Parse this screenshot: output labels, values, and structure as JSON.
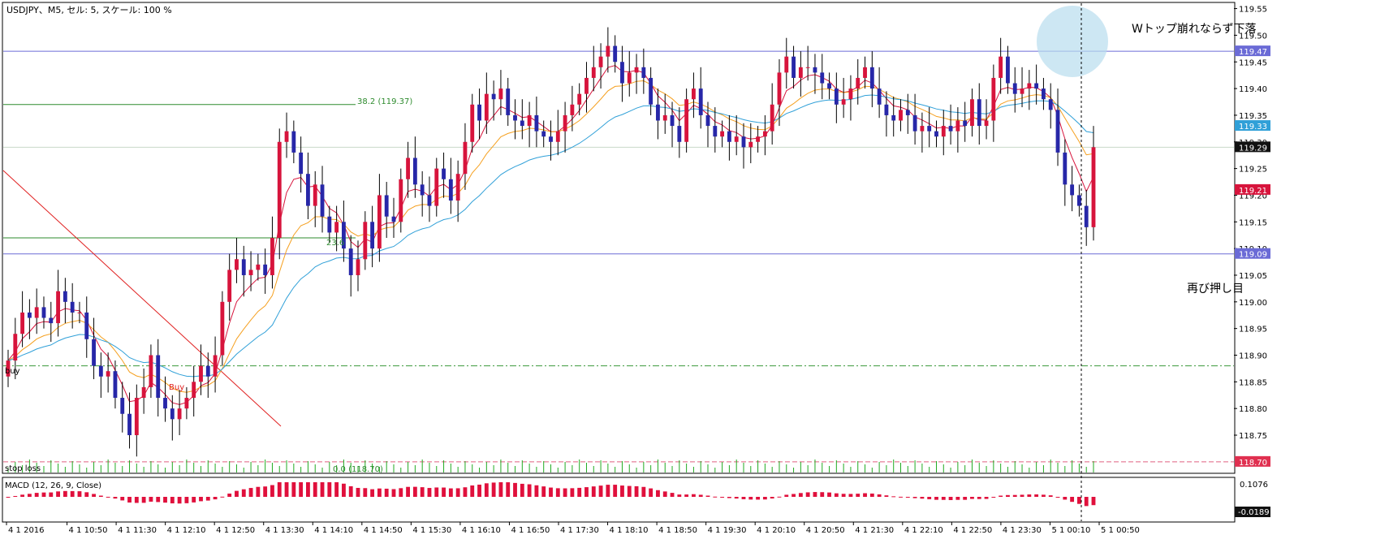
{
  "header": {
    "title": "USDJPY、M5, セル: 5, スケール: 100 %"
  },
  "colors": {
    "bull_candle": "#d7143c",
    "bear_candle": "#2727a8",
    "ma_fast": "#d7143c",
    "ma_mid": "#f5a020",
    "ma_slow": "#30a0d8",
    "level_line": "#6b6bd6",
    "fib_line": "#2e8b2e",
    "trend_line": "#e02020",
    "stop_line": "#e06080",
    "buy_line": "#3a9a3a",
    "volume": "#22aa22",
    "macd_bar": "#e0103c",
    "macd_signal": "#c0a0a0"
  },
  "annotations": {
    "top_note": "Wトップ崩れならず下落",
    "bottom_note": "再び押し目",
    "fib_382": "38.2 (119.37)",
    "fib_236": "23.6",
    "fib_0": "0.0 (118.70)",
    "buy_label": "buy",
    "buy_marker": "Buy",
    "stop_label": "stop loss"
  },
  "macd": {
    "label": "MACD (12, 26, 9, Close)",
    "scale_top": "0.1076",
    "current": "-0.0189"
  },
  "chart_data": {
    "type": "candlestick",
    "symbol": "USDJPY",
    "timeframe": "M5",
    "ylim": [
      118.68,
      119.56
    ],
    "y_ticks": [
      "119.55",
      "119.50",
      "119.45",
      "119.40",
      "119.35",
      "119.30",
      "119.25",
      "119.20",
      "119.15",
      "119.10",
      "119.05",
      "119.00",
      "118.95",
      "118.90",
      "118.85",
      "118.80",
      "118.75"
    ],
    "x_ticks": [
      "4 1 2016",
      "4 1 10:50",
      "4 1 11:30",
      "4 1 12:10",
      "4 1 12:50",
      "4 1 13:30",
      "4 1 14:10",
      "4 1 14:50",
      "4 1 15:30",
      "4 1 16:10",
      "4 1 16:50",
      "4 1 17:30",
      "4 1 18:10",
      "4 1 18:50",
      "4 1 19:30",
      "4 1 20:10",
      "4 1 20:50",
      "4 1 21:30",
      "4 1 22:10",
      "4 1 22:50",
      "4 1 23:30",
      "5 1 00:10",
      "5 1 00:50"
    ],
    "price_labels": [
      {
        "value": "119.47",
        "price": 119.47,
        "bg": "#6b6bd6",
        "fg": "#ffffff"
      },
      {
        "value": "119.33",
        "price": 119.33,
        "bg": "#30a0d8",
        "fg": "#ffffff"
      },
      {
        "value": "119.29",
        "price": 119.29,
        "bg": "#111111",
        "fg": "#ffffff"
      },
      {
        "value": "119.21",
        "price": 119.21,
        "bg": "#d7143c",
        "fg": "#ffffff"
      },
      {
        "value": "119.09",
        "price": 119.09,
        "bg": "#6b6bd6",
        "fg": "#ffffff"
      },
      {
        "value": "118.70",
        "price": 118.7,
        "bg": "#e03050",
        "fg": "#ffffff"
      }
    ],
    "horizontal_levels": [
      {
        "name": "resistance",
        "price": 119.47
      },
      {
        "name": "fib-38.2",
        "price": 119.37
      },
      {
        "name": "current",
        "price": 119.29
      },
      {
        "name": "fib-23.6",
        "price": 119.12
      },
      {
        "name": "support",
        "price": 119.09
      },
      {
        "name": "buy-entry",
        "price": 118.88
      },
      {
        "name": "stop-loss",
        "price": 118.7
      }
    ],
    "closes": [
      118.89,
      118.94,
      118.98,
      118.97,
      118.99,
      118.97,
      118.96,
      119.02,
      119.0,
      118.98,
      118.98,
      118.93,
      118.88,
      118.86,
      118.87,
      118.82,
      118.79,
      118.75,
      118.82,
      118.84,
      118.9,
      118.82,
      118.8,
      118.78,
      118.8,
      118.82,
      118.85,
      118.88,
      118.86,
      118.9,
      119.0,
      119.06,
      119.08,
      119.05,
      119.06,
      119.07,
      119.05,
      119.12,
      119.3,
      119.32,
      119.28,
      119.24,
      119.18,
      119.22,
      119.16,
      119.13,
      119.15,
      119.1,
      119.05,
      119.08,
      119.15,
      119.1,
      119.2,
      119.16,
      119.15,
      119.23,
      119.27,
      119.22,
      119.2,
      119.18,
      119.25,
      119.23,
      119.19,
      119.24,
      119.3,
      119.37,
      119.34,
      119.39,
      119.38,
      119.4,
      119.35,
      119.34,
      119.33,
      119.35,
      119.32,
      119.31,
      119.3,
      119.32,
      119.35,
      119.37,
      119.39,
      119.42,
      119.44,
      119.46,
      119.48,
      119.45,
      119.41,
      119.43,
      119.44,
      119.42,
      119.37,
      119.34,
      119.35,
      119.33,
      119.3,
      119.38,
      119.4,
      119.35,
      119.33,
      119.31,
      119.32,
      119.3,
      119.31,
      119.29,
      119.3,
      119.31,
      119.32,
      119.37,
      119.43,
      119.46,
      119.42,
      119.44,
      119.44,
      119.43,
      119.41,
      119.4,
      119.37,
      119.38,
      119.4,
      119.42,
      119.44,
      119.4,
      119.37,
      119.35,
      119.34,
      119.36,
      119.35,
      119.32,
      119.33,
      119.32,
      119.31,
      119.33,
      119.32,
      119.34,
      119.33,
      119.38,
      119.33,
      119.34,
      119.42,
      119.46,
      119.41,
      119.39,
      119.4,
      119.41,
      119.4,
      119.38,
      119.36,
      119.28,
      119.22,
      119.2,
      119.18,
      119.14,
      119.29
    ]
  }
}
